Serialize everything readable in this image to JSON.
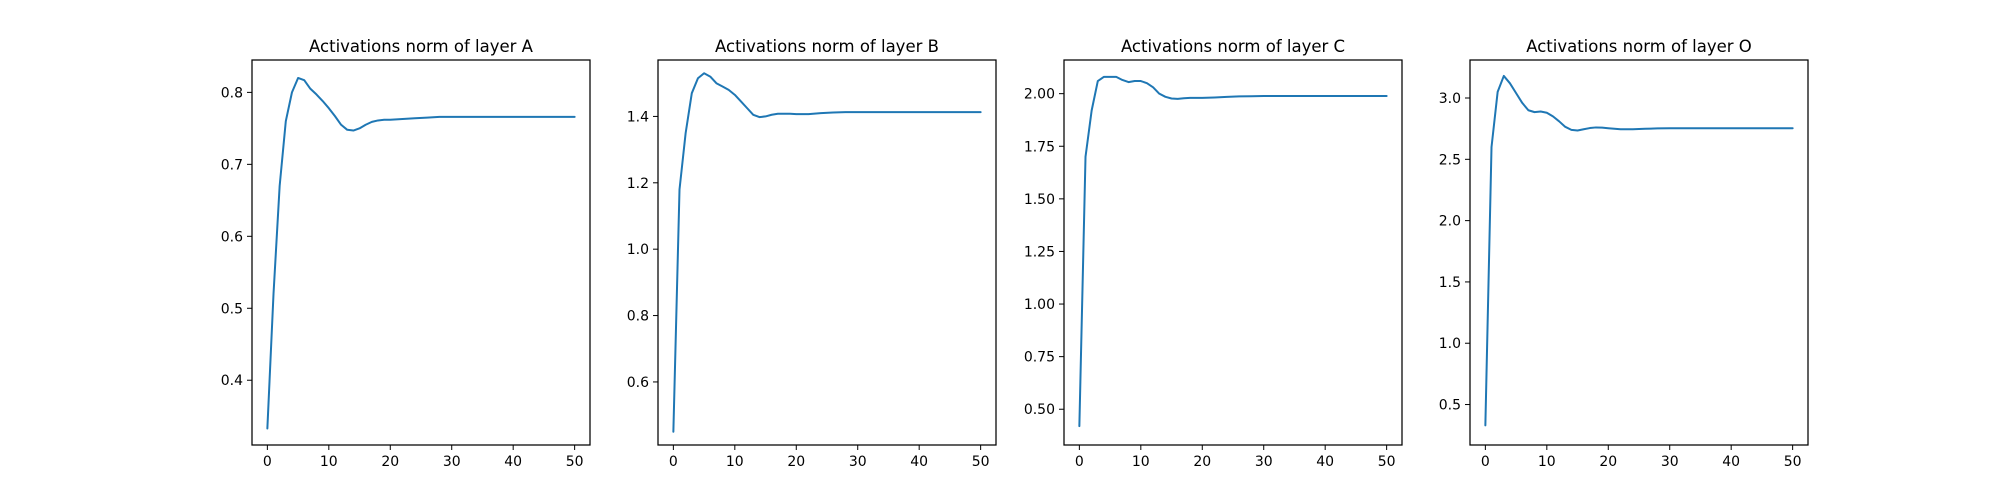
{
  "style": {
    "line_color": "#1f77b4",
    "background": "#ffffff"
  },
  "chart_data": [
    {
      "type": "line",
      "title": "Activations norm of layer A",
      "xlabel": "",
      "ylabel": "",
      "xlim": [
        -2.5,
        52.5
      ],
      "ylim": [
        0.31,
        0.845
      ],
      "xticks": [
        0,
        10,
        20,
        30,
        40,
        50
      ],
      "yticks": [
        0.4,
        0.5,
        0.6,
        0.7,
        0.8
      ],
      "ytick_labels": [
        "0.4",
        "0.5",
        "0.6",
        "0.7",
        "0.8"
      ],
      "grid": false,
      "series": [
        {
          "x": [
            0,
            1,
            2,
            3,
            4,
            5,
            6,
            7,
            8,
            9,
            10,
            11,
            12,
            13,
            14,
            15,
            16,
            17,
            18,
            19,
            20,
            22,
            24,
            26,
            28,
            30,
            35,
            40,
            45,
            50
          ],
          "values": [
            0.333,
            0.52,
            0.67,
            0.76,
            0.8,
            0.82,
            0.817,
            0.805,
            0.797,
            0.788,
            0.778,
            0.767,
            0.755,
            0.748,
            0.747,
            0.75,
            0.755,
            0.759,
            0.761,
            0.762,
            0.762,
            0.763,
            0.764,
            0.765,
            0.766,
            0.766,
            0.766,
            0.766,
            0.766,
            0.766
          ]
        }
      ]
    },
    {
      "type": "line",
      "title": "Activations norm of layer B",
      "xlabel": "",
      "ylabel": "",
      "xlim": [
        -2.5,
        52.5
      ],
      "ylim": [
        0.41,
        1.57
      ],
      "xticks": [
        0,
        10,
        20,
        30,
        40,
        50
      ],
      "yticks": [
        0.6,
        0.8,
        1.0,
        1.2,
        1.4
      ],
      "ytick_labels": [
        "0.6",
        "0.8",
        "1.0",
        "1.2",
        "1.4"
      ],
      "grid": false,
      "series": [
        {
          "x": [
            0,
            1,
            2,
            3,
            4,
            5,
            6,
            7,
            8,
            9,
            10,
            11,
            12,
            13,
            14,
            15,
            16,
            17,
            18,
            19,
            20,
            22,
            24,
            26,
            28,
            30,
            35,
            40,
            45,
            50
          ],
          "values": [
            0.45,
            1.18,
            1.35,
            1.47,
            1.515,
            1.53,
            1.52,
            1.5,
            1.49,
            1.48,
            1.465,
            1.445,
            1.425,
            1.405,
            1.398,
            1.4,
            1.405,
            1.408,
            1.408,
            1.408,
            1.407,
            1.407,
            1.41,
            1.412,
            1.413,
            1.413,
            1.413,
            1.413,
            1.413,
            1.413
          ]
        }
      ]
    },
    {
      "type": "line",
      "title": "Activations norm of layer C",
      "xlabel": "",
      "ylabel": "",
      "xlim": [
        -2.5,
        52.5
      ],
      "ylim": [
        0.33,
        2.16
      ],
      "xticks": [
        0,
        10,
        20,
        30,
        40,
        50
      ],
      "yticks": [
        0.5,
        0.75,
        1.0,
        1.25,
        1.5,
        1.75,
        2.0
      ],
      "ytick_labels": [
        "0.50",
        "0.75",
        "1.00",
        "1.25",
        "1.50",
        "1.75",
        "2.00"
      ],
      "grid": false,
      "series": [
        {
          "x": [
            0,
            1,
            2,
            3,
            4,
            5,
            6,
            7,
            8,
            9,
            10,
            11,
            12,
            13,
            14,
            15,
            16,
            17,
            18,
            19,
            20,
            22,
            24,
            26,
            28,
            30,
            35,
            40,
            45,
            50
          ],
          "values": [
            0.42,
            1.7,
            1.92,
            2.06,
            2.08,
            2.08,
            2.08,
            2.065,
            2.055,
            2.06,
            2.06,
            2.05,
            2.03,
            2.0,
            1.985,
            1.977,
            1.975,
            1.978,
            1.98,
            1.98,
            1.98,
            1.982,
            1.985,
            1.987,
            1.988,
            1.989,
            1.989,
            1.989,
            1.989,
            1.989
          ]
        }
      ]
    },
    {
      "type": "line",
      "title": "Activations norm of layer O",
      "xlabel": "",
      "ylabel": "",
      "xlim": [
        -2.5,
        52.5
      ],
      "ylim": [
        0.17,
        3.31
      ],
      "xticks": [
        0,
        10,
        20,
        30,
        40,
        50
      ],
      "yticks": [
        0.5,
        1.0,
        1.5,
        2.0,
        2.5,
        3.0
      ],
      "ytick_labels": [
        "0.5",
        "1.0",
        "1.5",
        "2.0",
        "2.5",
        "3.0"
      ],
      "grid": false,
      "series": [
        {
          "x": [
            0,
            1,
            2,
            3,
            4,
            5,
            6,
            7,
            8,
            9,
            10,
            11,
            12,
            13,
            14,
            15,
            16,
            17,
            18,
            19,
            20,
            22,
            24,
            26,
            28,
            30,
            35,
            40,
            45,
            50
          ],
          "values": [
            0.33,
            2.6,
            3.05,
            3.18,
            3.12,
            3.04,
            2.96,
            2.9,
            2.885,
            2.89,
            2.88,
            2.85,
            2.81,
            2.765,
            2.74,
            2.735,
            2.745,
            2.755,
            2.76,
            2.758,
            2.753,
            2.745,
            2.745,
            2.749,
            2.752,
            2.753,
            2.753,
            2.753,
            2.753,
            2.753
          ]
        }
      ]
    }
  ]
}
